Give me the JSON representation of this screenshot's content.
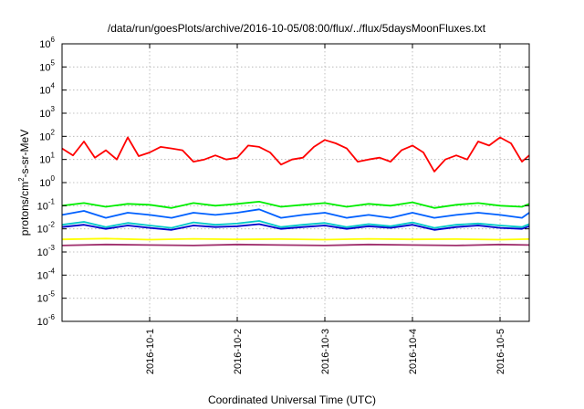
{
  "chart_data": {
    "type": "line",
    "title": "/data/run/goesPlots/archive/2016-10-05/08:00/flux/../flux/5daysMoonFluxes.txt",
    "xlabel": "Coordinated Universal Time (UTC)",
    "ylabel_parts": [
      "protons/cm",
      "2",
      "-s-sr-MeV"
    ],
    "y_scale": "log",
    "ylim": [
      1e-06,
      1000000.0
    ],
    "y_ticks": [
      {
        "base": "10",
        "exp": "-6",
        "value": -6
      },
      {
        "base": "10",
        "exp": "-5",
        "value": -5
      },
      {
        "base": "10",
        "exp": "-4",
        "value": -4
      },
      {
        "base": "10",
        "exp": "-3",
        "value": -3
      },
      {
        "base": "10",
        "exp": "-2",
        "value": -2
      },
      {
        "base": "10",
        "exp": "-1",
        "value": -1
      },
      {
        "base": "10",
        "exp": "0",
        "value": 0
      },
      {
        "base": "10",
        "exp": "1",
        "value": 1
      },
      {
        "base": "10",
        "exp": "2",
        "value": 2
      },
      {
        "base": "10",
        "exp": "3",
        "value": 3
      },
      {
        "base": "10",
        "exp": "4",
        "value": 4
      },
      {
        "base": "10",
        "exp": "5",
        "value": 5
      },
      {
        "base": "10",
        "exp": "6",
        "value": 6
      }
    ],
    "xlim": [
      "2016-09-30T00:00",
      "2016-10-05T08:00"
    ],
    "x_ticks": [
      "2016-10-1",
      "2016-10-2",
      "2016-10-3",
      "2016-10-4",
      "2016-10-5"
    ],
    "grid": true,
    "series": [
      {
        "color": "#ff0000",
        "points": [
          [
            "2016-09-30T00:00",
            30
          ],
          [
            "2016-09-30T03:00",
            15
          ],
          [
            "2016-09-30T06:00",
            60
          ],
          [
            "2016-09-30T09:00",
            12
          ],
          [
            "2016-09-30T12:00",
            25
          ],
          [
            "2016-09-30T15:00",
            10
          ],
          [
            "2016-09-30T18:00",
            90
          ],
          [
            "2016-09-30T21:00",
            14
          ],
          [
            "2016-10-01T00:00",
            20
          ],
          [
            "2016-10-01T03:00",
            35
          ],
          [
            "2016-10-01T06:00",
            30
          ],
          [
            "2016-10-01T09:00",
            25
          ],
          [
            "2016-10-01T12:00",
            8
          ],
          [
            "2016-10-01T15:00",
            10
          ],
          [
            "2016-10-01T18:00",
            15
          ],
          [
            "2016-10-01T21:00",
            10
          ],
          [
            "2016-10-02T00:00",
            12
          ],
          [
            "2016-10-02T03:00",
            40
          ],
          [
            "2016-10-02T06:00",
            35
          ],
          [
            "2016-10-02T09:00",
            20
          ],
          [
            "2016-10-02T12:00",
            6
          ],
          [
            "2016-10-02T15:00",
            10
          ],
          [
            "2016-10-02T18:00",
            12
          ],
          [
            "2016-10-02T21:00",
            35
          ],
          [
            "2016-10-03T00:00",
            70
          ],
          [
            "2016-10-03T03:00",
            50
          ],
          [
            "2016-10-03T06:00",
            30
          ],
          [
            "2016-10-03T09:00",
            8
          ],
          [
            "2016-10-03T12:00",
            10
          ],
          [
            "2016-10-03T15:00",
            12
          ],
          [
            "2016-10-03T18:00",
            8
          ],
          [
            "2016-10-03T21:00",
            25
          ],
          [
            "2016-10-04T00:00",
            40
          ],
          [
            "2016-10-04T03:00",
            20
          ],
          [
            "2016-10-04T06:00",
            3
          ],
          [
            "2016-10-04T09:00",
            10
          ],
          [
            "2016-10-04T12:00",
            15
          ],
          [
            "2016-10-04T15:00",
            10
          ],
          [
            "2016-10-04T18:00",
            60
          ],
          [
            "2016-10-04T21:00",
            40
          ],
          [
            "2016-10-05T00:00",
            90
          ],
          [
            "2016-10-05T03:00",
            50
          ],
          [
            "2016-10-05T06:00",
            8
          ],
          [
            "2016-10-05T08:00",
            15
          ]
        ]
      },
      {
        "color": "#00ee00",
        "points": [
          [
            "2016-09-30T00:00",
            0.1
          ],
          [
            "2016-09-30T06:00",
            0.13
          ],
          [
            "2016-09-30T12:00",
            0.09
          ],
          [
            "2016-09-30T18:00",
            0.12
          ],
          [
            "2016-10-01T00:00",
            0.11
          ],
          [
            "2016-10-01T06:00",
            0.08
          ],
          [
            "2016-10-01T12:00",
            0.13
          ],
          [
            "2016-10-01T18:00",
            0.1
          ],
          [
            "2016-10-02T00:00",
            0.12
          ],
          [
            "2016-10-02T06:00",
            0.15
          ],
          [
            "2016-10-02T12:00",
            0.09
          ],
          [
            "2016-10-02T18:00",
            0.11
          ],
          [
            "2016-10-03T00:00",
            0.13
          ],
          [
            "2016-10-03T06:00",
            0.09
          ],
          [
            "2016-10-03T12:00",
            0.12
          ],
          [
            "2016-10-03T18:00",
            0.1
          ],
          [
            "2016-10-04T00:00",
            0.14
          ],
          [
            "2016-10-04T06:00",
            0.08
          ],
          [
            "2016-10-04T12:00",
            0.11
          ],
          [
            "2016-10-04T18:00",
            0.13
          ],
          [
            "2016-10-05T00:00",
            0.1
          ],
          [
            "2016-10-05T06:00",
            0.09
          ],
          [
            "2016-10-05T08:00",
            0.12
          ]
        ]
      },
      {
        "color": "#0060ff",
        "points": [
          [
            "2016-09-30T00:00",
            0.04
          ],
          [
            "2016-09-30T06:00",
            0.06
          ],
          [
            "2016-09-30T12:00",
            0.03
          ],
          [
            "2016-09-30T18:00",
            0.05
          ],
          [
            "2016-10-01T00:00",
            0.04
          ],
          [
            "2016-10-01T06:00",
            0.03
          ],
          [
            "2016-10-01T12:00",
            0.05
          ],
          [
            "2016-10-01T18:00",
            0.04
          ],
          [
            "2016-10-02T00:00",
            0.05
          ],
          [
            "2016-10-02T06:00",
            0.07
          ],
          [
            "2016-10-02T12:00",
            0.03
          ],
          [
            "2016-10-02T18:00",
            0.04
          ],
          [
            "2016-10-03T00:00",
            0.05
          ],
          [
            "2016-10-03T06:00",
            0.03
          ],
          [
            "2016-10-03T12:00",
            0.04
          ],
          [
            "2016-10-03T18:00",
            0.03
          ],
          [
            "2016-10-04T00:00",
            0.05
          ],
          [
            "2016-10-04T06:00",
            0.03
          ],
          [
            "2016-10-04T12:00",
            0.04
          ],
          [
            "2016-10-04T18:00",
            0.05
          ],
          [
            "2016-10-05T00:00",
            0.04
          ],
          [
            "2016-10-05T06:00",
            0.03
          ],
          [
            "2016-10-05T08:00",
            0.05
          ]
        ]
      },
      {
        "color": "#00c8c8",
        "points": [
          [
            "2016-09-30T00:00",
            0.015
          ],
          [
            "2016-09-30T06:00",
            0.02
          ],
          [
            "2016-09-30T12:00",
            0.012
          ],
          [
            "2016-09-30T18:00",
            0.018
          ],
          [
            "2016-10-01T00:00",
            0.014
          ],
          [
            "2016-10-01T06:00",
            0.011
          ],
          [
            "2016-10-01T12:00",
            0.019
          ],
          [
            "2016-10-01T18:00",
            0.015
          ],
          [
            "2016-10-02T00:00",
            0.017
          ],
          [
            "2016-10-02T06:00",
            0.022
          ],
          [
            "2016-10-02T12:00",
            0.012
          ],
          [
            "2016-10-02T18:00",
            0.015
          ],
          [
            "2016-10-03T00:00",
            0.018
          ],
          [
            "2016-10-03T06:00",
            0.012
          ],
          [
            "2016-10-03T12:00",
            0.016
          ],
          [
            "2016-10-03T18:00",
            0.013
          ],
          [
            "2016-10-04T00:00",
            0.019
          ],
          [
            "2016-10-04T06:00",
            0.011
          ],
          [
            "2016-10-04T12:00",
            0.015
          ],
          [
            "2016-10-04T18:00",
            0.017
          ],
          [
            "2016-10-05T00:00",
            0.014
          ],
          [
            "2016-10-05T06:00",
            0.012
          ],
          [
            "2016-10-05T08:00",
            0.016
          ]
        ]
      },
      {
        "color": "#0000cc",
        "points": [
          [
            "2016-09-30T00:00",
            0.012
          ],
          [
            "2016-09-30T06:00",
            0.015
          ],
          [
            "2016-09-30T12:00",
            0.01
          ],
          [
            "2016-09-30T18:00",
            0.014
          ],
          [
            "2016-10-01T00:00",
            0.011
          ],
          [
            "2016-10-01T06:00",
            0.009
          ],
          [
            "2016-10-01T12:00",
            0.014
          ],
          [
            "2016-10-01T18:00",
            0.012
          ],
          [
            "2016-10-02T00:00",
            0.013
          ],
          [
            "2016-10-02T06:00",
            0.016
          ],
          [
            "2016-10-02T12:00",
            0.01
          ],
          [
            "2016-10-02T18:00",
            0.012
          ],
          [
            "2016-10-03T00:00",
            0.014
          ],
          [
            "2016-10-03T06:00",
            0.01
          ],
          [
            "2016-10-03T12:00",
            0.013
          ],
          [
            "2016-10-03T18:00",
            0.011
          ],
          [
            "2016-10-04T00:00",
            0.015
          ],
          [
            "2016-10-04T06:00",
            0.009
          ],
          [
            "2016-10-04T12:00",
            0.012
          ],
          [
            "2016-10-04T18:00",
            0.014
          ],
          [
            "2016-10-05T00:00",
            0.011
          ],
          [
            "2016-10-05T06:00",
            0.01
          ],
          [
            "2016-10-05T08:00",
            0.013
          ]
        ]
      },
      {
        "color": "#ffff00",
        "points": [
          [
            "2016-09-30T00:00",
            0.0035
          ],
          [
            "2016-09-30T12:00",
            0.0038
          ],
          [
            "2016-10-01T00:00",
            0.0034
          ],
          [
            "2016-10-01T12:00",
            0.0037
          ],
          [
            "2016-10-02T00:00",
            0.0035
          ],
          [
            "2016-10-02T12:00",
            0.0036
          ],
          [
            "2016-10-03T00:00",
            0.0034
          ],
          [
            "2016-10-03T12:00",
            0.0037
          ],
          [
            "2016-10-04T00:00",
            0.0035
          ],
          [
            "2016-10-04T12:00",
            0.0036
          ],
          [
            "2016-10-05T00:00",
            0.0034
          ],
          [
            "2016-10-05T08:00",
            0.0036
          ]
        ]
      },
      {
        "color": "#a0306e",
        "points": [
          [
            "2016-09-30T00:00",
            0.0019
          ],
          [
            "2016-09-30T12:00",
            0.0021
          ],
          [
            "2016-10-01T00:00",
            0.002
          ],
          [
            "2016-10-01T12:00",
            0.0019
          ],
          [
            "2016-10-02T00:00",
            0.0021
          ],
          [
            "2016-10-02T12:00",
            0.002
          ],
          [
            "2016-10-03T00:00",
            0.0019
          ],
          [
            "2016-10-03T12:00",
            0.0021
          ],
          [
            "2016-10-04T00:00",
            0.002
          ],
          [
            "2016-10-04T12:00",
            0.0019
          ],
          [
            "2016-10-05T00:00",
            0.0021
          ],
          [
            "2016-10-05T08:00",
            0.002
          ]
        ]
      }
    ]
  }
}
